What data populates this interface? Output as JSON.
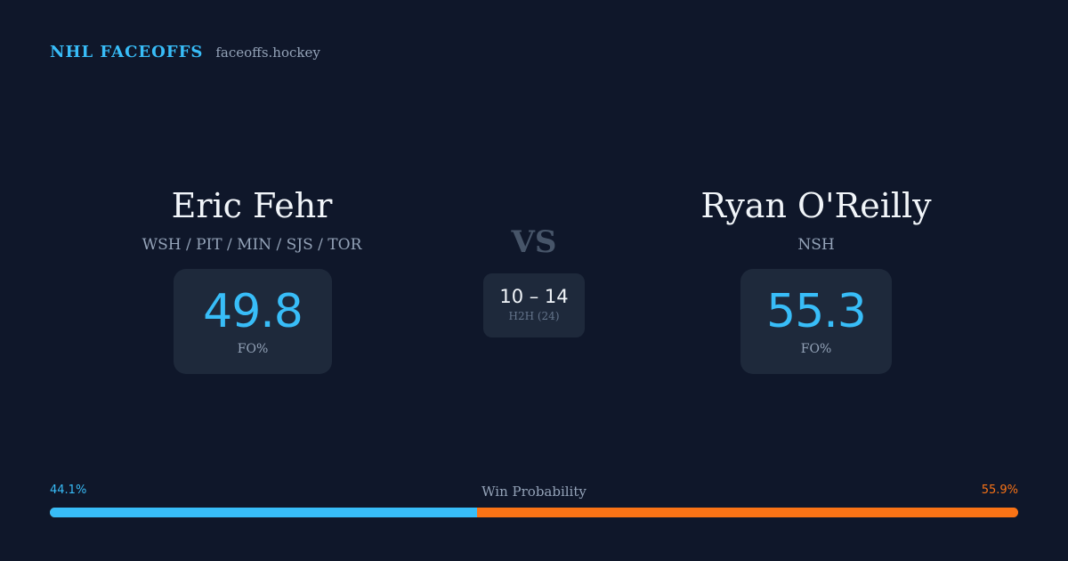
{
  "header": {
    "brand": "NHL FACEOFFS",
    "site": "faceoffs.hockey"
  },
  "player_left": {
    "name": "Eric Fehr",
    "teams": "WSH / PIT / MIN / SJS / TOR",
    "fo_pct": "49.8",
    "fo_label": "FO%"
  },
  "player_right": {
    "name": "Ryan O'Reilly",
    "teams": "NSH",
    "fo_pct": "55.3",
    "fo_label": "FO%"
  },
  "matchup": {
    "vs": "VS",
    "h2h_score": "10 – 14",
    "h2h_label": "H2H (24)"
  },
  "win_probability": {
    "title": "Win Probability",
    "left_pct_label": "44.1%",
    "right_pct_label": "55.9%",
    "left_fraction": 0.441,
    "right_fraction": 0.559,
    "left_color": "#38bdf8",
    "right_color": "#f97316"
  },
  "colors": {
    "background": "#0f172a",
    "accent": "#38bdf8",
    "card": "#1e293b"
  }
}
